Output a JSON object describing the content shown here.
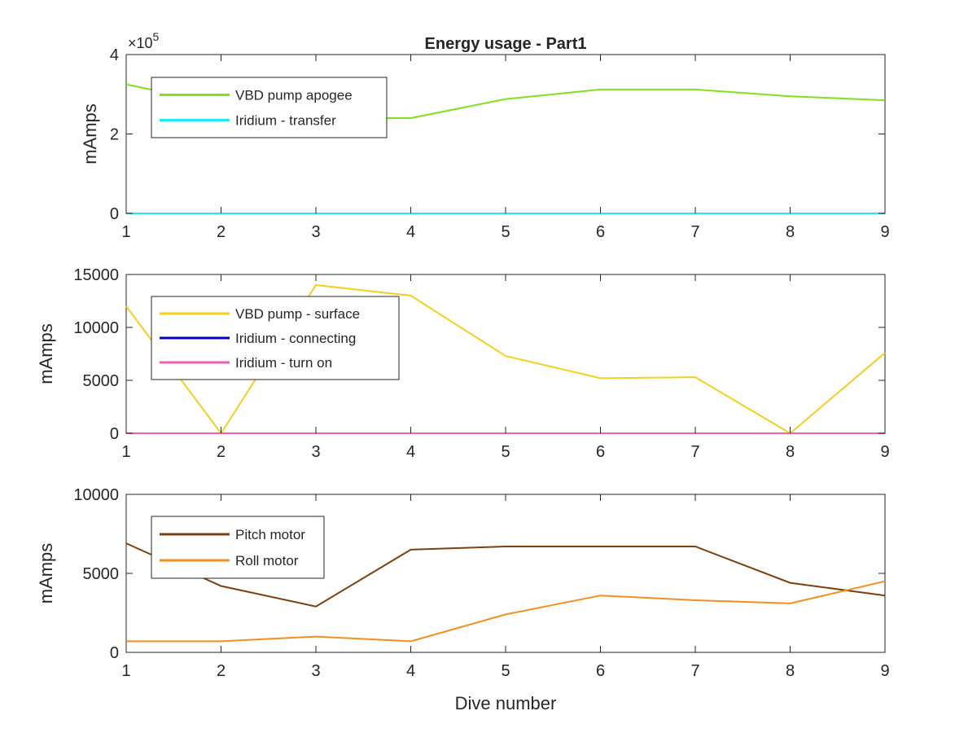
{
  "chart_data": [
    {
      "type": "line",
      "title": "Energy usage - Part1",
      "xlabel": "",
      "ylabel": "mAmps",
      "xlim": [
        1,
        9
      ],
      "ylim": [
        0,
        400000
      ],
      "x_ticks": [
        1,
        2,
        3,
        4,
        5,
        6,
        7,
        8,
        9
      ],
      "y_ticks": [
        0,
        200000,
        400000
      ],
      "y_tick_labels": [
        "0",
        "2",
        "4"
      ],
      "y_multiplier_label": "×10",
      "y_multiplier_exponent": "5",
      "legend_position": "top-left",
      "grid": false,
      "x": [
        1,
        2,
        3,
        4,
        5,
        6,
        7,
        8,
        9
      ],
      "series": [
        {
          "name": "VBD pump apogee",
          "color": "#80e020",
          "values": [
            325000,
            275000,
            240000,
            240000,
            288000,
            312000,
            312000,
            295000,
            285000
          ]
        },
        {
          "name": "Iridium - transfer",
          "color": "#20e8f0",
          "values": [
            0,
            0,
            0,
            0,
            0,
            0,
            0,
            0,
            0
          ]
        }
      ]
    },
    {
      "type": "line",
      "title": "",
      "xlabel": "",
      "ylabel": "mAmps",
      "xlim": [
        1,
        9
      ],
      "ylim": [
        0,
        15000
      ],
      "x_ticks": [
        1,
        2,
        3,
        4,
        5,
        6,
        7,
        8,
        9
      ],
      "y_ticks": [
        0,
        5000,
        10000,
        15000
      ],
      "y_tick_labels": [
        "0",
        "5000",
        "10000",
        "15000"
      ],
      "legend_position": "top-left",
      "grid": false,
      "x": [
        1,
        2,
        3,
        4,
        5,
        6,
        7,
        8,
        9
      ],
      "series": [
        {
          "name": "VBD pump - surface",
          "color": "#f2d020",
          "values": [
            12000,
            0,
            14000,
            13000,
            7300,
            5200,
            5300,
            0,
            7600
          ]
        },
        {
          "name": "Iridium - connecting",
          "color": "#0000c0",
          "values": [
            0,
            0,
            0,
            0,
            0,
            0,
            0,
            0,
            0
          ]
        },
        {
          "name": "Iridium - turn on",
          "color": "#f060b0",
          "values": [
            0,
            0,
            0,
            0,
            0,
            0,
            0,
            0,
            0
          ]
        }
      ]
    },
    {
      "type": "line",
      "title": "",
      "xlabel": "Dive number",
      "ylabel": "mAmps",
      "xlim": [
        1,
        9
      ],
      "ylim": [
        0,
        10000
      ],
      "x_ticks": [
        1,
        2,
        3,
        4,
        5,
        6,
        7,
        8,
        9
      ],
      "y_ticks": [
        0,
        5000,
        10000
      ],
      "y_tick_labels": [
        "0",
        "5000",
        "10000"
      ],
      "legend_position": "top-left",
      "grid": false,
      "x": [
        1,
        2,
        3,
        4,
        5,
        6,
        7,
        8,
        9
      ],
      "series": [
        {
          "name": "Pitch motor",
          "color": "#7a4010",
          "values": [
            6900,
            4200,
            2900,
            6500,
            6700,
            6700,
            6700,
            4400,
            3600
          ]
        },
        {
          "name": "Roll motor",
          "color": "#f09020",
          "values": [
            700,
            700,
            1000,
            700,
            2400,
            3600,
            3300,
            3100,
            4500
          ]
        }
      ]
    }
  ]
}
